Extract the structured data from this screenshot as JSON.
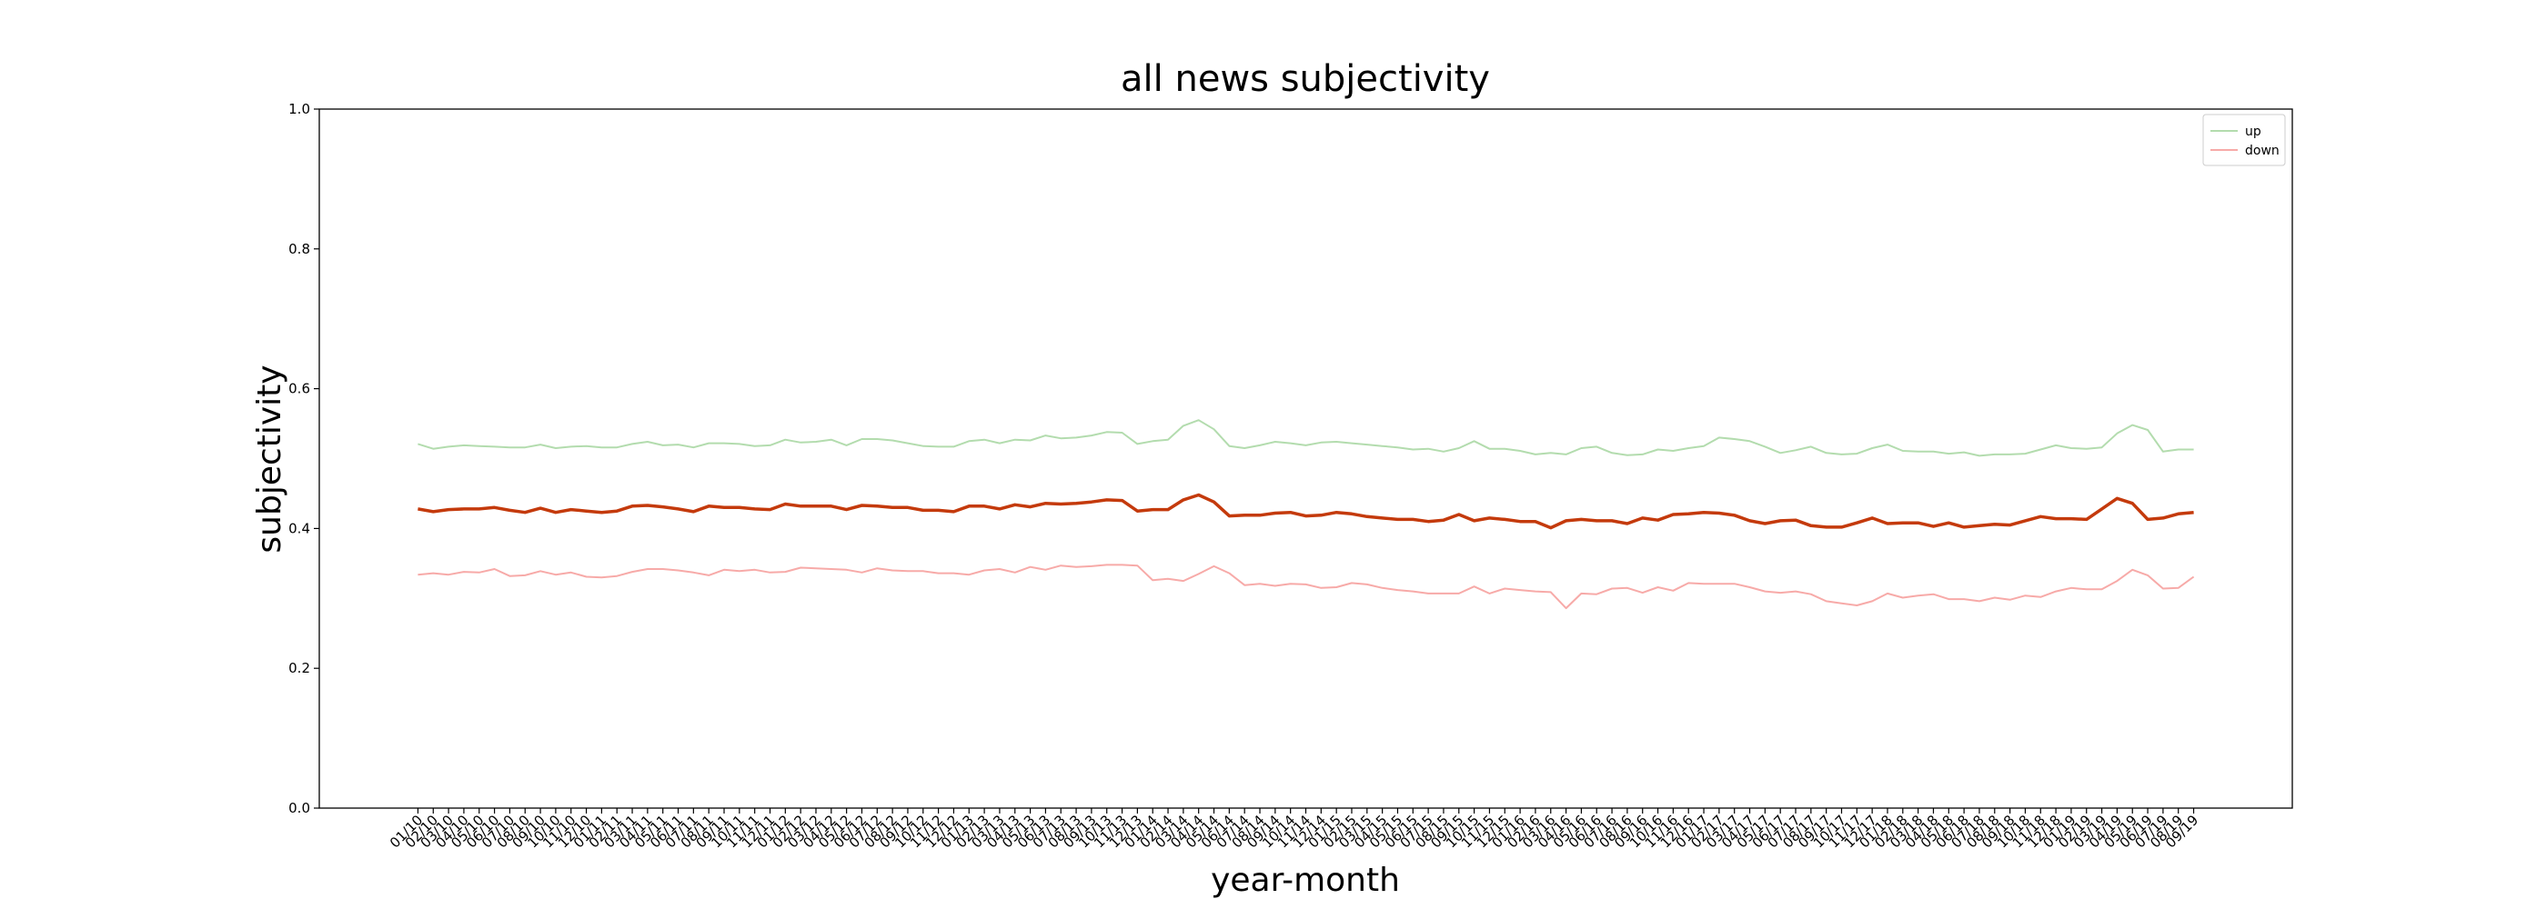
{
  "chart_data": {
    "type": "line",
    "title": "all news subjectivity",
    "x_label": "year-month",
    "y_label": "subjectivity",
    "categories": [
      "01/10",
      "02/10",
      "03/10",
      "04/10",
      "05/10",
      "06/10",
      "07/10",
      "08/10",
      "09/10",
      "10/10",
      "11/10",
      "12/10",
      "01/11",
      "02/11",
      "03/11",
      "04/11",
      "05/11",
      "06/11",
      "07/11",
      "08/11",
      "09/11",
      "10/11",
      "11/11",
      "12/11",
      "01/12",
      "02/12",
      "03/12",
      "04/12",
      "05/12",
      "06/12",
      "07/12",
      "08/12",
      "09/12",
      "10/12",
      "11/12",
      "12/12",
      "01/13",
      "02/13",
      "03/13",
      "04/13",
      "05/13",
      "06/13",
      "07/13",
      "08/13",
      "09/13",
      "10/13",
      "11/13",
      "12/13",
      "01/14",
      "02/14",
      "03/14",
      "04/14",
      "05/14",
      "06/14",
      "07/14",
      "08/14",
      "09/14",
      "10/14",
      "11/14",
      "12/14",
      "01/15",
      "02/15",
      "03/15",
      "04/15",
      "05/15",
      "06/15",
      "07/15",
      "08/15",
      "09/15",
      "10/15",
      "11/15",
      "12/15",
      "01/16",
      "02/16",
      "03/16",
      "04/16",
      "05/16",
      "06/16",
      "07/16",
      "08/16",
      "09/16",
      "10/16",
      "11/16",
      "12/16",
      "01/17",
      "02/17",
      "03/17",
      "04/17",
      "05/17",
      "06/17",
      "07/17",
      "08/17",
      "09/17",
      "10/17",
      "11/17",
      "12/17",
      "01/18",
      "02/18",
      "03/18",
      "04/18",
      "05/18",
      "06/18",
      "07/18",
      "08/18",
      "09/18",
      "10/18",
      "11/18",
      "12/18",
      "01/19",
      "02/19",
      "03/19",
      "04/19",
      "05/19",
      "06/19",
      "07/19",
      "08/19",
      "09/19"
    ],
    "series": [
      {
        "name": "up",
        "color": "#b3dcae",
        "width": 2,
        "values": [
          0.521,
          0.514,
          0.517,
          0.519,
          0.518,
          0.517,
          0.516,
          0.516,
          0.52,
          0.515,
          0.517,
          0.518,
          0.516,
          0.516,
          0.521,
          0.524,
          0.519,
          0.52,
          0.516,
          0.522,
          0.522,
          0.521,
          0.518,
          0.519,
          0.527,
          0.523,
          0.524,
          0.527,
          0.519,
          0.528,
          0.528,
          0.526,
          0.522,
          0.518,
          0.517,
          0.517,
          0.525,
          0.527,
          0.522,
          0.527,
          0.526,
          0.533,
          0.529,
          0.53,
          0.533,
          0.538,
          0.537,
          0.521,
          0.525,
          0.527,
          0.547,
          0.555,
          0.542,
          0.518,
          0.515,
          0.519,
          0.524,
          0.522,
          0.519,
          0.523,
          0.524,
          0.522,
          0.52,
          0.518,
          0.516,
          0.513,
          0.514,
          0.51,
          0.515,
          0.525,
          0.514,
          0.514,
          0.511,
          0.506,
          0.508,
          0.506,
          0.515,
          0.517,
          0.508,
          0.505,
          0.506,
          0.513,
          0.511,
          0.515,
          0.518,
          0.53,
          0.528,
          0.525,
          0.517,
          0.508,
          0.512,
          0.517,
          0.508,
          0.506,
          0.507,
          0.515,
          0.52,
          0.511,
          0.51,
          0.51,
          0.507,
          0.509,
          0.504,
          0.506,
          0.506,
          0.507,
          0.513,
          0.519,
          0.515,
          0.514,
          0.516,
          0.536,
          0.548,
          0.541,
          0.51,
          0.513,
          0.513
        ]
      },
      {
        "name": "down",
        "color": "#f7aaa8",
        "width": 2,
        "values": [
          0.334,
          0.336,
          0.334,
          0.338,
          0.337,
          0.342,
          0.332,
          0.333,
          0.339,
          0.334,
          0.337,
          0.331,
          0.33,
          0.332,
          0.338,
          0.342,
          0.342,
          0.34,
          0.337,
          0.333,
          0.341,
          0.339,
          0.341,
          0.337,
          0.338,
          0.344,
          0.343,
          0.342,
          0.341,
          0.337,
          0.343,
          0.34,
          0.339,
          0.339,
          0.336,
          0.336,
          0.334,
          0.34,
          0.342,
          0.337,
          0.345,
          0.341,
          0.347,
          0.345,
          0.346,
          0.348,
          0.348,
          0.347,
          0.326,
          0.328,
          0.325,
          0.335,
          0.346,
          0.336,
          0.319,
          0.321,
          0.318,
          0.321,
          0.32,
          0.315,
          0.316,
          0.322,
          0.32,
          0.315,
          0.312,
          0.31,
          0.307,
          0.307,
          0.307,
          0.317,
          0.307,
          0.314,
          0.312,
          0.31,
          0.309,
          0.286,
          0.307,
          0.306,
          0.314,
          0.315,
          0.308,
          0.316,
          0.311,
          0.322,
          0.321,
          0.321,
          0.321,
          0.316,
          0.31,
          0.308,
          0.31,
          0.306,
          0.296,
          0.293,
          0.29,
          0.296,
          0.307,
          0.301,
          0.304,
          0.306,
          0.299,
          0.299,
          0.296,
          0.301,
          0.298,
          0.304,
          0.302,
          0.31,
          0.315,
          0.313,
          0.313,
          0.325,
          0.341,
          0.333,
          0.314,
          0.315,
          0.331
        ]
      },
      {
        "color": "#c43a0c",
        "width": 3.5,
        "values": [
          0.428,
          0.424,
          0.427,
          0.428,
          0.428,
          0.43,
          0.426,
          0.423,
          0.429,
          0.423,
          0.427,
          0.425,
          0.423,
          0.425,
          0.432,
          0.433,
          0.431,
          0.428,
          0.424,
          0.432,
          0.43,
          0.43,
          0.428,
          0.427,
          0.435,
          0.432,
          0.432,
          0.432,
          0.427,
          0.433,
          0.432,
          0.43,
          0.43,
          0.426,
          0.426,
          0.424,
          0.432,
          0.432,
          0.428,
          0.434,
          0.431,
          0.436,
          0.435,
          0.436,
          0.438,
          0.441,
          0.44,
          0.425,
          0.427,
          0.427,
          0.441,
          0.448,
          0.438,
          0.418,
          0.419,
          0.419,
          0.422,
          0.423,
          0.418,
          0.419,
          0.423,
          0.421,
          0.417,
          0.415,
          0.413,
          0.413,
          0.41,
          0.412,
          0.42,
          0.411,
          0.415,
          0.413,
          0.41,
          0.41,
          0.401,
          0.411,
          0.413,
          0.411,
          0.411,
          0.407,
          0.415,
          0.412,
          0.42,
          0.421,
          0.423,
          0.422,
          0.419,
          0.411,
          0.407,
          0.411,
          0.412,
          0.404,
          0.402,
          0.402,
          0.408,
          0.415,
          0.407,
          0.408,
          0.408,
          0.403,
          0.408,
          0.402,
          0.404,
          0.406,
          0.405,
          0.411,
          0.417,
          0.414,
          0.414,
          0.413,
          0.428,
          0.443,
          0.436,
          0.413,
          0.415,
          0.421,
          0.423
        ]
      }
    ],
    "ylim": [
      0,
      1
    ],
    "yticks": [
      {
        "value": 0,
        "label": "0.0"
      },
      {
        "value": 0.2,
        "label": "0.2"
      },
      {
        "value": 0.4,
        "label": "0.4"
      },
      {
        "value": 0.6,
        "label": "0.6"
      },
      {
        "value": 0.8,
        "label": "0.8"
      },
      {
        "value": 1,
        "label": "1.0"
      }
    ],
    "grid": false,
    "legend": "upper right"
  }
}
